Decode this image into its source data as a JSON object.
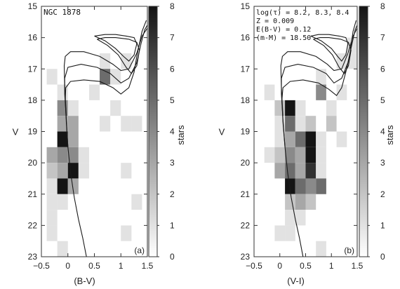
{
  "chart_data": [
    {
      "type": "heatmap",
      "panel_label": "(a)",
      "annotation": [
        "NGC 1878"
      ],
      "xlabel": "(B-V)",
      "ylabel": "V",
      "colorbar_label": "stars",
      "xlim": [
        -0.5,
        1.5
      ],
      "ylim": [
        15,
        23
      ],
      "y_inverted": true,
      "xticks": [
        -0.5,
        0,
        0.5,
        1,
        1.5
      ],
      "xtick_labels": [
        "−0.5",
        "0",
        "0.5",
        "1",
        "1.5"
      ],
      "yticks": [
        15,
        16,
        17,
        18,
        19,
        20,
        21,
        22,
        23
      ],
      "ytick_labels": [
        "15",
        "16",
        "17",
        "18",
        "19",
        "20",
        "21",
        "22",
        "23"
      ],
      "colorbar_ticks": [
        0,
        1,
        2,
        3,
        4,
        5,
        6,
        7,
        8
      ],
      "colorbar_range": [
        0,
        8
      ],
      "cell_size": {
        "color": 0.2,
        "mag": 0.5
      },
      "cells": [
        {
          "x0": 0.6,
          "y0": 16.5,
          "count": 1
        },
        {
          "x0": 1.0,
          "y0": 16.5,
          "count": 1
        },
        {
          "x0": -0.4,
          "y0": 17.0,
          "count": 1
        },
        {
          "x0": 0.6,
          "y0": 17.0,
          "count": 5
        },
        {
          "x0": 0.8,
          "y0": 17.0,
          "count": 1
        },
        {
          "x0": -0.2,
          "y0": 17.5,
          "count": 1
        },
        {
          "x0": 0.4,
          "y0": 17.5,
          "count": 1
        },
        {
          "x0": -0.2,
          "y0": 18.0,
          "count": 4
        },
        {
          "x0": 0.0,
          "y0": 18.0,
          "count": 1
        },
        {
          "x0": 0.8,
          "y0": 18.0,
          "count": 1
        },
        {
          "x0": -0.2,
          "y0": 18.5,
          "count": 3
        },
        {
          "x0": 0.0,
          "y0": 18.5,
          "count": 3
        },
        {
          "x0": 0.6,
          "y0": 18.5,
          "count": 1
        },
        {
          "x0": 1.0,
          "y0": 18.5,
          "count": 1
        },
        {
          "x0": 1.2,
          "y0": 18.5,
          "count": 1
        },
        {
          "x0": -0.2,
          "y0": 19.0,
          "count": 8
        },
        {
          "x0": 0.0,
          "y0": 19.0,
          "count": 3
        },
        {
          "x0": -0.4,
          "y0": 19.5,
          "count": 3
        },
        {
          "x0": -0.2,
          "y0": 19.5,
          "count": 4
        },
        {
          "x0": 0.0,
          "y0": 19.5,
          "count": 4
        },
        {
          "x0": 0.2,
          "y0": 19.5,
          "count": 1
        },
        {
          "x0": -0.4,
          "y0": 20.0,
          "count": 2
        },
        {
          "x0": -0.2,
          "y0": 20.0,
          "count": 3
        },
        {
          "x0": 0.0,
          "y0": 20.0,
          "count": 8
        },
        {
          "x0": 0.2,
          "y0": 20.0,
          "count": 1
        },
        {
          "x0": 1.0,
          "y0": 20.0,
          "count": 1
        },
        {
          "x0": -0.4,
          "y0": 20.5,
          "count": 1
        },
        {
          "x0": -0.2,
          "y0": 20.5,
          "count": 8
        },
        {
          "x0": 0.0,
          "y0": 20.5,
          "count": 3
        },
        {
          "x0": -0.4,
          "y0": 21.0,
          "count": 1
        },
        {
          "x0": -0.2,
          "y0": 21.0,
          "count": 1
        },
        {
          "x0": 1.2,
          "y0": 21.0,
          "count": 1
        },
        {
          "x0": -0.4,
          "y0": 21.5,
          "count": 1
        },
        {
          "x0": -0.4,
          "y0": 22.0,
          "count": 1
        },
        {
          "x0": 1.0,
          "y0": 22.0,
          "count": 1
        },
        {
          "x0": -0.2,
          "y0": 22.5,
          "count": 1
        }
      ],
      "isochrones": [
        {
          "points": [
            [
              0.35,
              23.0
            ],
            [
              0.28,
              22.4
            ],
            [
              0.2,
              21.8
            ],
            [
              0.12,
              21.1
            ],
            [
              0.05,
              20.3
            ],
            [
              0.0,
              19.5
            ],
            [
              -0.03,
              18.7
            ],
            [
              -0.05,
              18.0
            ],
            [
              -0.04,
              17.6
            ],
            [
              0.05,
              17.4
            ],
            [
              0.3,
              17.35
            ],
            [
              0.6,
              17.4
            ],
            [
              0.85,
              17.6
            ],
            [
              1.0,
              17.8
            ],
            [
              1.15,
              17.6
            ],
            [
              1.25,
              17.1
            ],
            [
              1.3,
              16.6
            ],
            [
              1.4,
              15.8
            ],
            [
              1.48,
              15.45
            ]
          ]
        },
        {
          "points": [
            [
              0.0,
              19.5
            ],
            [
              -0.03,
              18.6
            ],
            [
              -0.06,
              17.8
            ],
            [
              -0.06,
              17.3
            ],
            [
              0.0,
              16.95
            ],
            [
              0.25,
              16.85
            ],
            [
              0.55,
              16.95
            ],
            [
              0.8,
              17.15
            ],
            [
              1.0,
              17.45
            ],
            [
              1.15,
              17.3
            ],
            [
              1.3,
              16.8
            ],
            [
              1.38,
              16.2
            ],
            [
              1.45,
              15.75
            ],
            [
              1.5,
              15.6
            ]
          ]
        },
        {
          "points": [
            [
              -0.03,
              18.5
            ],
            [
              -0.06,
              17.6
            ],
            [
              -0.07,
              16.9
            ],
            [
              -0.05,
              16.6
            ],
            [
              0.05,
              16.45
            ],
            [
              0.3,
              16.45
            ],
            [
              0.6,
              16.6
            ],
            [
              0.85,
              16.85
            ],
            [
              1.0,
              17.05
            ],
            [
              1.15,
              17.0
            ],
            [
              1.3,
              16.5
            ],
            [
              1.4,
              15.95
            ],
            [
              1.5,
              15.7
            ]
          ]
        },
        {
          "points": [
            [
              0.5,
              15.95
            ],
            [
              0.7,
              16.1
            ],
            [
              0.9,
              16.35
            ],
            [
              1.05,
              16.6
            ],
            [
              1.15,
              16.75
            ],
            [
              1.25,
              16.55
            ],
            [
              1.3,
              16.2
            ],
            [
              1.25,
              16.0
            ],
            [
              1.1,
              15.95
            ],
            [
              0.9,
              15.9
            ],
            [
              0.7,
              15.9
            ],
            [
              0.5,
              15.95
            ]
          ]
        },
        {
          "points": [
            [
              0.55,
              16.05
            ],
            [
              0.75,
              16.25
            ],
            [
              0.95,
              16.55
            ],
            [
              1.1,
              16.95
            ],
            [
              1.2,
              17.15
            ],
            [
              1.3,
              16.9
            ],
            [
              1.35,
              16.4
            ],
            [
              1.3,
              16.15
            ],
            [
              1.15,
              16.05
            ],
            [
              0.9,
              16.0
            ],
            [
              0.7,
              16.0
            ],
            [
              0.55,
              16.05
            ]
          ]
        }
      ]
    },
    {
      "type": "heatmap",
      "panel_label": "(b)",
      "annotation": [
        "log(τ) = 8.2, 8.3, 8.4",
        "Z = 0.009",
        "E(B-V) = 0.12",
        "(m-M) = 18.50"
      ],
      "xlabel": "(V-I)",
      "ylabel": "V",
      "colorbar_label": "stars",
      "xlim": [
        -0.5,
        1.5
      ],
      "ylim": [
        15,
        23
      ],
      "y_inverted": true,
      "xticks": [
        -0.5,
        0,
        0.5,
        1,
        1.5
      ],
      "xtick_labels": [
        "−0.5",
        "0",
        "0.5",
        "1",
        "1.5"
      ],
      "yticks": [
        15,
        16,
        17,
        18,
        19,
        20,
        21,
        22,
        23
      ],
      "ytick_labels": [
        "15",
        "16",
        "17",
        "18",
        "19",
        "20",
        "21",
        "22",
        "23"
      ],
      "colorbar_ticks": [
        0,
        1,
        2,
        3,
        4,
        5,
        6,
        7,
        8
      ],
      "colorbar_range": [
        0,
        8
      ],
      "cell_size": {
        "color": 0.2,
        "mag": 0.5
      },
      "cells": [
        {
          "x0": 1.3,
          "y0": 16.0,
          "count": 1
        },
        {
          "x0": 1.1,
          "y0": 16.5,
          "count": 1
        },
        {
          "x0": 1.3,
          "y0": 16.5,
          "count": 1
        },
        {
          "x0": 0.7,
          "y0": 17.0,
          "count": 1
        },
        {
          "x0": -0.3,
          "y0": 17.5,
          "count": 1
        },
        {
          "x0": 0.7,
          "y0": 17.5,
          "count": 4
        },
        {
          "x0": 1.1,
          "y0": 17.5,
          "count": 1
        },
        {
          "x0": -0.1,
          "y0": 18.0,
          "count": 2
        },
        {
          "x0": 0.1,
          "y0": 18.0,
          "count": 8
        },
        {
          "x0": 0.3,
          "y0": 18.0,
          "count": 1
        },
        {
          "x0": 0.9,
          "y0": 18.0,
          "count": 1
        },
        {
          "x0": -0.1,
          "y0": 18.5,
          "count": 1
        },
        {
          "x0": 0.1,
          "y0": 18.5,
          "count": 5
        },
        {
          "x0": 0.3,
          "y0": 18.5,
          "count": 1
        },
        {
          "x0": 0.5,
          "y0": 18.5,
          "count": 2
        },
        {
          "x0": 0.9,
          "y0": 18.5,
          "count": 2
        },
        {
          "x0": -0.1,
          "y0": 19.0,
          "count": 1
        },
        {
          "x0": 0.1,
          "y0": 19.0,
          "count": 3
        },
        {
          "x0": 0.3,
          "y0": 19.0,
          "count": 5
        },
        {
          "x0": 0.5,
          "y0": 19.0,
          "count": 8
        },
        {
          "x0": 0.7,
          "y0": 19.0,
          "count": 1
        },
        {
          "x0": 1.1,
          "y0": 19.0,
          "count": 1
        },
        {
          "x0": -0.3,
          "y0": 19.5,
          "count": 1
        },
        {
          "x0": -0.1,
          "y0": 19.5,
          "count": 2
        },
        {
          "x0": 0.1,
          "y0": 19.5,
          "count": 4
        },
        {
          "x0": 0.3,
          "y0": 19.5,
          "count": 3
        },
        {
          "x0": 0.5,
          "y0": 19.5,
          "count": 8
        },
        {
          "x0": 0.7,
          "y0": 19.5,
          "count": 1
        },
        {
          "x0": -0.1,
          "y0": 20.0,
          "count": 3
        },
        {
          "x0": 0.1,
          "y0": 20.0,
          "count": 5
        },
        {
          "x0": 0.3,
          "y0": 20.0,
          "count": 3
        },
        {
          "x0": 0.5,
          "y0": 20.0,
          "count": 7
        },
        {
          "x0": 0.7,
          "y0": 20.0,
          "count": 1
        },
        {
          "x0": 0.1,
          "y0": 20.5,
          "count": 8
        },
        {
          "x0": 0.3,
          "y0": 20.5,
          "count": 5
        },
        {
          "x0": 0.5,
          "y0": 20.5,
          "count": 4
        },
        {
          "x0": 0.7,
          "y0": 20.5,
          "count": 5
        },
        {
          "x0": 0.1,
          "y0": 21.0,
          "count": 2
        },
        {
          "x0": 0.3,
          "y0": 21.0,
          "count": 3
        },
        {
          "x0": 0.5,
          "y0": 21.0,
          "count": 2
        },
        {
          "x0": 0.1,
          "y0": 21.5,
          "count": 1
        },
        {
          "x0": 0.3,
          "y0": 21.5,
          "count": 1
        },
        {
          "x0": -0.1,
          "y0": 22.0,
          "count": 1
        },
        {
          "x0": 0.1,
          "y0": 22.0,
          "count": 1
        },
        {
          "x0": 0.7,
          "y0": 22.5,
          "count": 1
        }
      ],
      "isochrones": [
        {
          "points": [
            [
              0.45,
              23.0
            ],
            [
              0.38,
              22.4
            ],
            [
              0.3,
              21.8
            ],
            [
              0.22,
              21.1
            ],
            [
              0.15,
              20.3
            ],
            [
              0.1,
              19.5
            ],
            [
              0.06,
              18.7
            ],
            [
              0.04,
              18.0
            ],
            [
              0.06,
              17.6
            ],
            [
              0.2,
              17.4
            ],
            [
              0.45,
              17.35
            ],
            [
              0.75,
              17.45
            ],
            [
              0.95,
              17.65
            ],
            [
              1.1,
              17.85
            ],
            [
              1.2,
              17.6
            ],
            [
              1.28,
              17.1
            ],
            [
              1.35,
              16.6
            ],
            [
              1.42,
              15.8
            ],
            [
              1.48,
              15.45
            ]
          ]
        },
        {
          "points": [
            [
              0.1,
              19.5
            ],
            [
              0.06,
              18.6
            ],
            [
              0.03,
              17.8
            ],
            [
              0.03,
              17.3
            ],
            [
              0.1,
              16.95
            ],
            [
              0.35,
              16.85
            ],
            [
              0.65,
              16.95
            ],
            [
              0.9,
              17.15
            ],
            [
              1.05,
              17.45
            ],
            [
              1.2,
              17.3
            ],
            [
              1.32,
              16.8
            ],
            [
              1.4,
              16.2
            ],
            [
              1.46,
              15.75
            ],
            [
              1.5,
              15.6
            ]
          ]
        },
        {
          "points": [
            [
              0.06,
              18.5
            ],
            [
              0.03,
              17.6
            ],
            [
              0.02,
              16.9
            ],
            [
              0.05,
              16.6
            ],
            [
              0.15,
              16.45
            ],
            [
              0.4,
              16.45
            ],
            [
              0.7,
              16.6
            ],
            [
              0.92,
              16.85
            ],
            [
              1.05,
              17.05
            ],
            [
              1.2,
              17.0
            ],
            [
              1.32,
              16.5
            ],
            [
              1.42,
              15.95
            ],
            [
              1.5,
              15.7
            ]
          ]
        },
        {
          "points": [
            [
              0.6,
              15.95
            ],
            [
              0.8,
              16.1
            ],
            [
              1.0,
              16.35
            ],
            [
              1.12,
              16.6
            ],
            [
              1.2,
              16.75
            ],
            [
              1.28,
              16.55
            ],
            [
              1.32,
              16.2
            ],
            [
              1.28,
              16.0
            ],
            [
              1.15,
              15.95
            ],
            [
              0.95,
              15.9
            ],
            [
              0.75,
              15.9
            ],
            [
              0.6,
              15.95
            ]
          ]
        },
        {
          "points": [
            [
              0.65,
              16.05
            ],
            [
              0.85,
              16.25
            ],
            [
              1.02,
              16.55
            ],
            [
              1.15,
              16.95
            ],
            [
              1.25,
              17.15
            ],
            [
              1.33,
              16.9
            ],
            [
              1.38,
              16.4
            ],
            [
              1.33,
              16.15
            ],
            [
              1.18,
              16.05
            ],
            [
              0.95,
              16.0
            ],
            [
              0.78,
              16.0
            ],
            [
              0.65,
              16.05
            ]
          ]
        }
      ]
    }
  ]
}
